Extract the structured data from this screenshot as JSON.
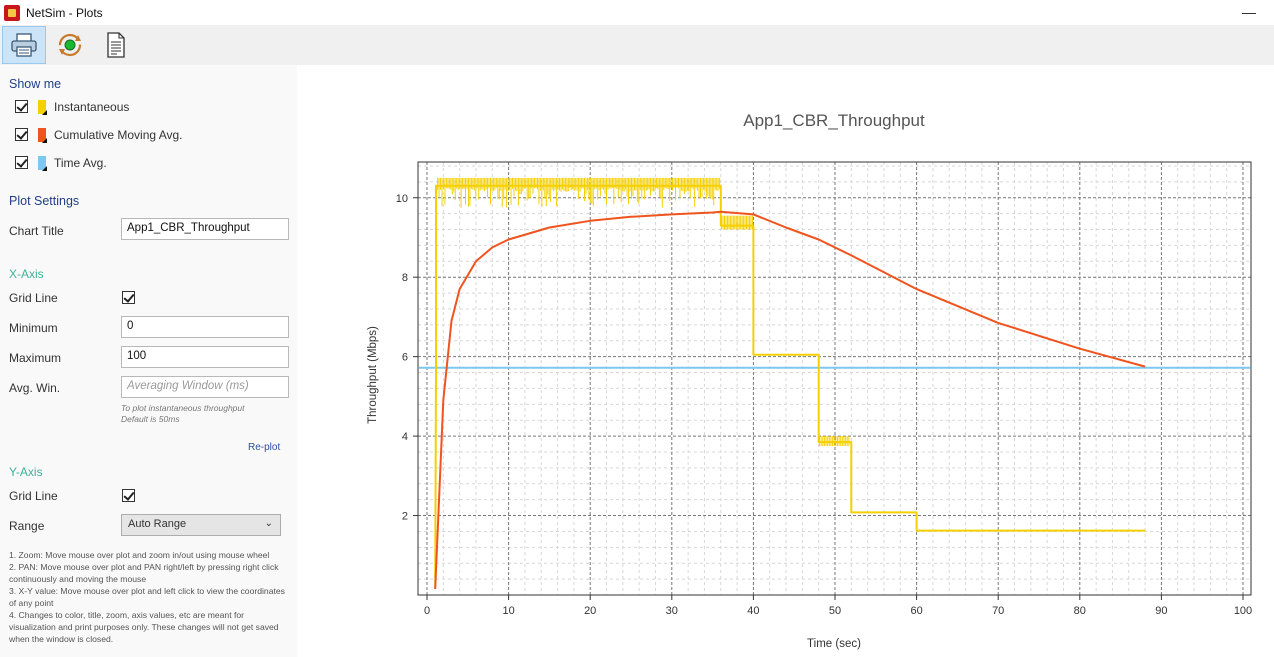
{
  "window": {
    "title": "NetSim - Plots",
    "minimize_glyph": "—"
  },
  "toolbar": {
    "buttons": [
      {
        "name": "print-icon"
      },
      {
        "name": "refresh-icon"
      },
      {
        "name": "document-icon"
      }
    ]
  },
  "show_me": {
    "heading": "Show me",
    "items": [
      {
        "label": "Instantaneous",
        "checked": true,
        "color": "#f5d000"
      },
      {
        "label": "Cumulative Moving Avg.",
        "checked": true,
        "color": "#f0541e"
      },
      {
        "label": "Time Avg.",
        "checked": true,
        "color": "#7cc8ee"
      }
    ]
  },
  "plot_settings": {
    "heading": "Plot Settings",
    "chart_title_label": "Chart Title",
    "chart_title_value": "App1_CBR_Throughput"
  },
  "x_axis": {
    "heading": "X-Axis",
    "grid_line_label": "Grid Line",
    "grid_line_checked": true,
    "minimum_label": "Minimum",
    "minimum_value": "0",
    "maximum_label": "Maximum",
    "maximum_value": "100",
    "avg_win_label": "Avg. Win.",
    "avg_win_placeholder": "Averaging Window (ms)",
    "hint_line1": "To plot instantaneous throughput",
    "hint_line2": "Default is 50ms",
    "replot_label": "Re-plot"
  },
  "y_axis": {
    "heading": "Y-Axis",
    "grid_line_label": "Grid Line",
    "grid_line_checked": true,
    "range_label": "Range",
    "range_value": "Auto Range"
  },
  "instructions": [
    "1. Zoom: Move mouse over plot and zoom in/out using mouse wheel",
    "2. PAN: Move mouse over plot and PAN right/left by pressing right click continuously and moving the mouse",
    "3. X-Y value: Move mouse over plot and left click to view the coordinates of any point",
    "4. Changes to color, title, zoom, axis values, etc are meant for visualization and print purposes only. These changes will not get saved when the window is closed."
  ],
  "chart_data": {
    "type": "line",
    "title": "App1_CBR_Throughput",
    "xlabel": "Time (sec)",
    "ylabel": "Throughput (Mbps)",
    "xlim": [
      0,
      100
    ],
    "ylim": [
      0,
      10.9
    ],
    "xticks": [
      0,
      10,
      20,
      30,
      40,
      50,
      60,
      70,
      80,
      90,
      100
    ],
    "yticks": [
      2,
      4,
      6,
      8,
      10
    ],
    "grid": true,
    "series": [
      {
        "name": "Instantaneous",
        "color": "#f5d000",
        "x": [
          1,
          1.1,
          1.1,
          36,
          36,
          40,
          40,
          48,
          48,
          52,
          52,
          60,
          60,
          88
        ],
        "y": [
          0.2,
          5.7,
          10.3,
          10.3,
          9.3,
          9.3,
          6.05,
          6.05,
          3.85,
          3.85,
          2.08,
          2.08,
          1.62,
          1.62
        ]
      },
      {
        "name": "Cumulative Moving Avg.",
        "color": "#f0541e",
        "x": [
          1,
          2,
          3,
          4,
          6,
          8,
          10,
          15,
          20,
          25,
          30,
          35,
          36,
          40,
          44,
          48,
          52,
          60,
          70,
          80,
          88
        ],
        "y": [
          0.15,
          4.9,
          6.9,
          7.7,
          8.4,
          8.75,
          8.95,
          9.25,
          9.42,
          9.52,
          9.58,
          9.63,
          9.65,
          9.58,
          9.25,
          8.95,
          8.55,
          7.7,
          6.85,
          6.2,
          5.75
        ]
      },
      {
        "name": "Time Avg.",
        "color": "#7cc8ee",
        "x": [
          0,
          100
        ],
        "y": [
          5.72,
          5.72
        ]
      }
    ]
  }
}
